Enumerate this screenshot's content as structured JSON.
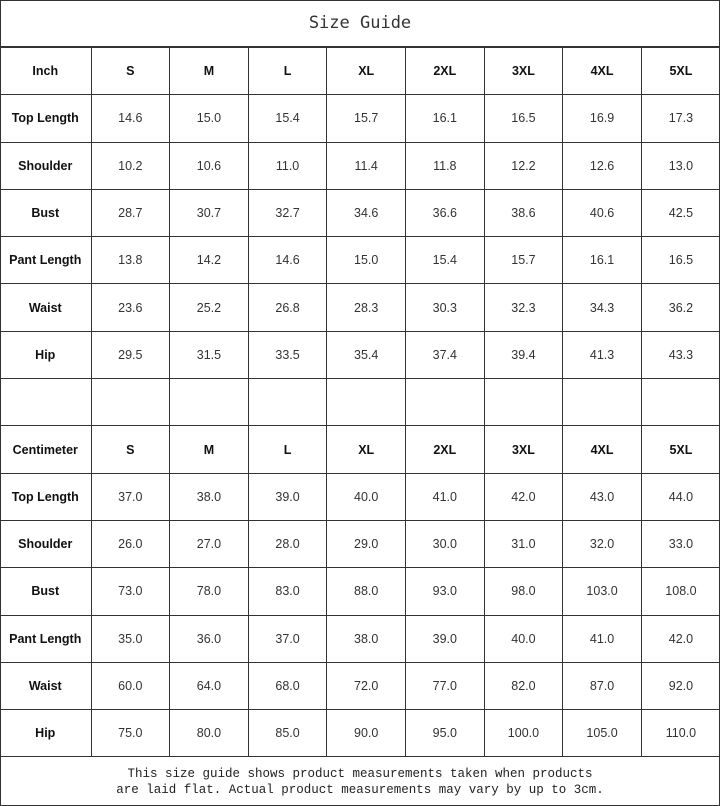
{
  "title": "Size Guide",
  "sizes": [
    "S",
    "M",
    "L",
    "XL",
    "2XL",
    "3XL",
    "4XL",
    "5XL"
  ],
  "sections": [
    {
      "unit": "Inch",
      "rows": [
        {
          "label": "Top Length",
          "values": [
            "14.6",
            "15.0",
            "15.4",
            "15.7",
            "16.1",
            "16.5",
            "16.9",
            "17.3"
          ]
        },
        {
          "label": "Shoulder",
          "values": [
            "10.2",
            "10.6",
            "11.0",
            "11.4",
            "11.8",
            "12.2",
            "12.6",
            "13.0"
          ]
        },
        {
          "label": "Bust",
          "values": [
            "28.7",
            "30.7",
            "32.7",
            "34.6",
            "36.6",
            "38.6",
            "40.6",
            "42.5"
          ]
        },
        {
          "label": "Pant Length",
          "values": [
            "13.8",
            "14.2",
            "14.6",
            "15.0",
            "15.4",
            "15.7",
            "16.1",
            "16.5"
          ]
        },
        {
          "label": "Waist",
          "values": [
            "23.6",
            "25.2",
            "26.8",
            "28.3",
            "30.3",
            "32.3",
            "34.3",
            "36.2"
          ]
        },
        {
          "label": "Hip",
          "values": [
            "29.5",
            "31.5",
            "33.5",
            "35.4",
            "37.4",
            "39.4",
            "41.3",
            "43.3"
          ]
        }
      ]
    },
    {
      "unit": "Centimeter",
      "rows": [
        {
          "label": "Top Length",
          "values": [
            "37.0",
            "38.0",
            "39.0",
            "40.0",
            "41.0",
            "42.0",
            "43.0",
            "44.0"
          ]
        },
        {
          "label": "Shoulder",
          "values": [
            "26.0",
            "27.0",
            "28.0",
            "29.0",
            "30.0",
            "31.0",
            "32.0",
            "33.0"
          ]
        },
        {
          "label": "Bust",
          "values": [
            "73.0",
            "78.0",
            "83.0",
            "88.0",
            "93.0",
            "98.0",
            "103.0",
            "108.0"
          ]
        },
        {
          "label": "Pant Length",
          "values": [
            "35.0",
            "36.0",
            "37.0",
            "38.0",
            "39.0",
            "40.0",
            "41.0",
            "42.0"
          ]
        },
        {
          "label": "Waist",
          "values": [
            "60.0",
            "64.0",
            "68.0",
            "72.0",
            "77.0",
            "82.0",
            "87.0",
            "92.0"
          ]
        },
        {
          "label": "Hip",
          "values": [
            "75.0",
            "80.0",
            "85.0",
            "90.0",
            "95.0",
            "100.0",
            "105.0",
            "110.0"
          ]
        }
      ]
    }
  ],
  "footer": {
    "line1": "This size guide shows product measurements taken when products",
    "line2": "are laid flat. Actual product measurements may vary by up to 3cm."
  }
}
